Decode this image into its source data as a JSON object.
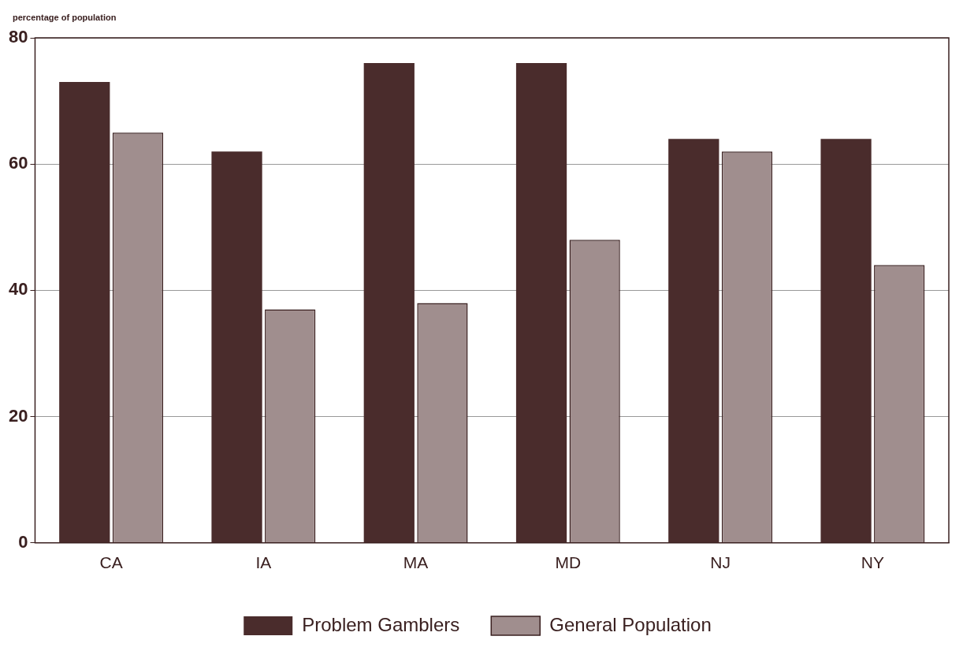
{
  "chart_data": {
    "type": "bar",
    "ylabel": "percentage of population",
    "categories": [
      "CA",
      "IA",
      "MA",
      "MD",
      "NJ",
      "NY"
    ],
    "series": [
      {
        "name": "Problem Gamblers",
        "color": "#4a2c2c",
        "values": [
          73,
          62,
          76,
          76,
          64,
          64
        ]
      },
      {
        "name": "General Population",
        "color": "#a08e8e",
        "values": [
          65,
          37,
          38,
          48,
          62,
          44
        ]
      }
    ],
    "ylim": [
      0,
      80
    ],
    "yticks": [
      0,
      20,
      40,
      60,
      80
    ],
    "grid": "y",
    "legend": "bottom"
  }
}
